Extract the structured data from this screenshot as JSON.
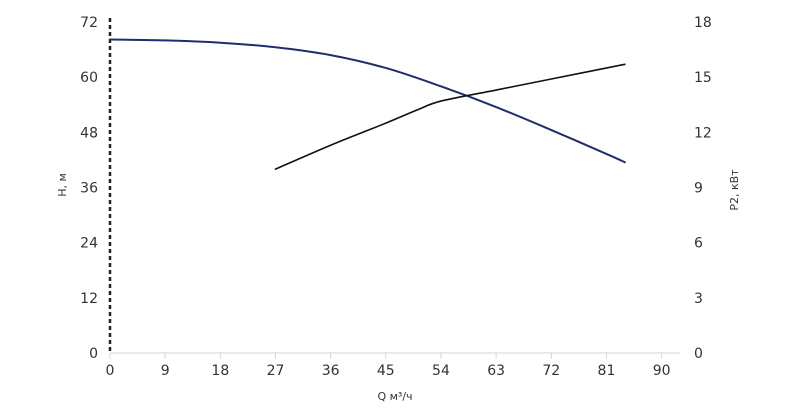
{
  "chart_data": {
    "type": "line",
    "xlabel": "Q м³/ч",
    "ylabel_left": "H, м",
    "ylabel_right": "P2, кВт",
    "xlim": [
      0,
      93
    ],
    "ylim_left": [
      0,
      72
    ],
    "ylim_right": [
      0,
      18
    ],
    "x_ticks": [
      0,
      9,
      18,
      27,
      36,
      45,
      54,
      63,
      72,
      81,
      90
    ],
    "y_ticks_left": [
      0,
      12,
      24,
      36,
      48,
      60,
      72
    ],
    "y_ticks_right": [
      0,
      3,
      6,
      9,
      12,
      15,
      18
    ],
    "grid": false,
    "legend": "none",
    "series": [
      {
        "axis": "left",
        "color": "#1f2d6e",
        "x": [
          0,
          9,
          18,
          27,
          36,
          45,
          54,
          63,
          72,
          81,
          84
        ],
        "y": [
          68.2,
          68.0,
          67.5,
          66.5,
          64.8,
          62.0,
          58.0,
          53.5,
          48.5,
          43.3,
          41.5
        ]
      },
      {
        "axis": "right",
        "color": "#111111",
        "x": [
          27,
          36,
          45,
          50,
          54,
          63,
          72,
          84
        ],
        "y": [
          10.0,
          11.3,
          12.5,
          13.2,
          13.7,
          14.3,
          14.9,
          15.7
        ]
      }
    ]
  }
}
